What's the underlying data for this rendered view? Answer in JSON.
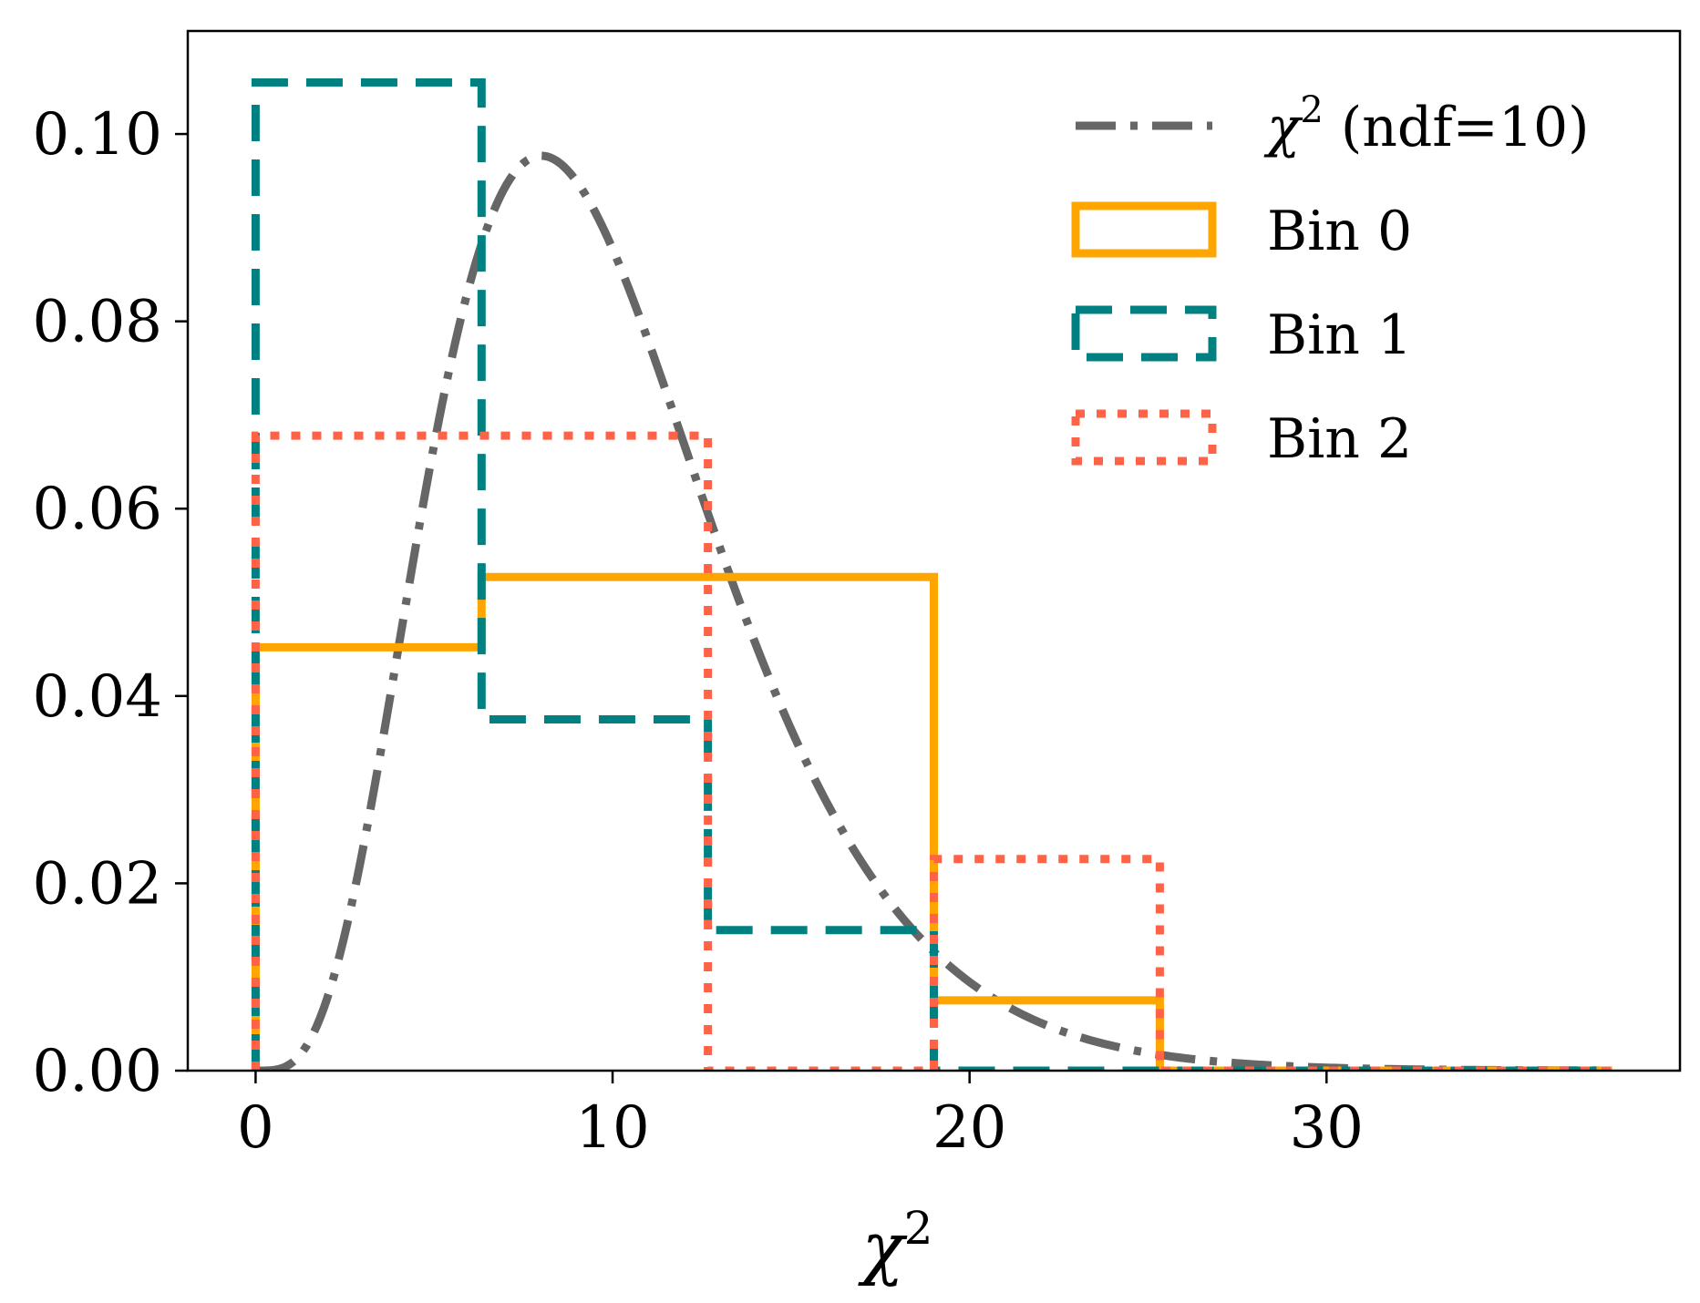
{
  "chart_data": {
    "type": "line",
    "xlabel": "χ",
    "xlabel_sup": "2",
    "xlim": [
      -1.9,
      39.9
    ],
    "ylim": [
      0,
      0.111
    ],
    "xticks": [
      0,
      10,
      20,
      30
    ],
    "xtick_labels": [
      "0",
      "10",
      "20",
      "30"
    ],
    "yticks": [
      0,
      0.02,
      0.04,
      0.06,
      0.08,
      0.1
    ],
    "ytick_labels": [
      "0.00",
      "0.02",
      "0.04",
      "0.06",
      "0.08",
      "0.10"
    ],
    "grid": false,
    "legend_position": "top-right",
    "curve": {
      "name_main": "χ",
      "name_sup": "2",
      "name_rest": " (ndf=10)",
      "ndf": 10,
      "x_range": [
        0,
        38
      ],
      "color": "#666666",
      "style": "dashdot"
    },
    "series": [
      {
        "name": "Bin 0",
        "color": "#FFA500",
        "style": "solid",
        "edges": [
          0,
          6.33,
          12.67,
          19.0,
          25.33,
          31.67,
          38.0
        ],
        "values": [
          0.0452,
          0.0527,
          0.0527,
          0.0075,
          0.0,
          0.0
        ]
      },
      {
        "name": "Bin 1",
        "color": "#008080",
        "style": "dashed",
        "edges": [
          0,
          6.33,
          12.67,
          19.0,
          25.33,
          31.67,
          38.0
        ],
        "values": [
          0.1055,
          0.0375,
          0.015,
          0.0,
          0.0,
          0.0
        ]
      },
      {
        "name": "Bin 2",
        "color": "#FF6347",
        "style": "dotted",
        "edges": [
          0,
          6.33,
          12.67,
          19.0,
          25.33,
          31.67,
          38.0
        ],
        "values": [
          0.0678,
          0.0678,
          0.0,
          0.0226,
          0.0,
          0.0
        ]
      }
    ]
  }
}
